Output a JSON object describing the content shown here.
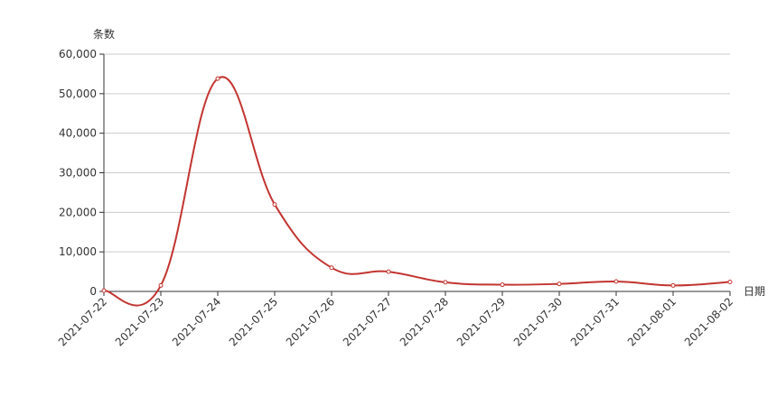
{
  "chart_data": {
    "type": "line",
    "y_axis_label": "条数",
    "x_axis_label": "日期",
    "categories": [
      "2021-07-22",
      "2021-07-23",
      "2021-07-24",
      "2021-07-25",
      "2021-07-26",
      "2021-07-27",
      "2021-07-28",
      "2021-07-29",
      "2021-07-30",
      "2021-07-31",
      "2021-08-01",
      "2021-08-02"
    ],
    "values": [
      200,
      1500,
      53800,
      22000,
      6000,
      5000,
      2300,
      1700,
      1900,
      2500,
      1500,
      2400
    ],
    "color": "#c23531",
    "ylim": [
      0,
      60000
    ],
    "yticks": [
      0,
      {
        "value": 10000,
        "label": "10,000"
      },
      {
        "value": 20000,
        "label": "20,000"
      },
      {
        "value": 30000,
        "label": "30,000"
      },
      {
        "value": 40000,
        "label": "40,000"
      },
      {
        "value": 50000,
        "label": "50,000"
      },
      {
        "value": 60000,
        "label": "60,000"
      }
    ],
    "grid": true
  }
}
